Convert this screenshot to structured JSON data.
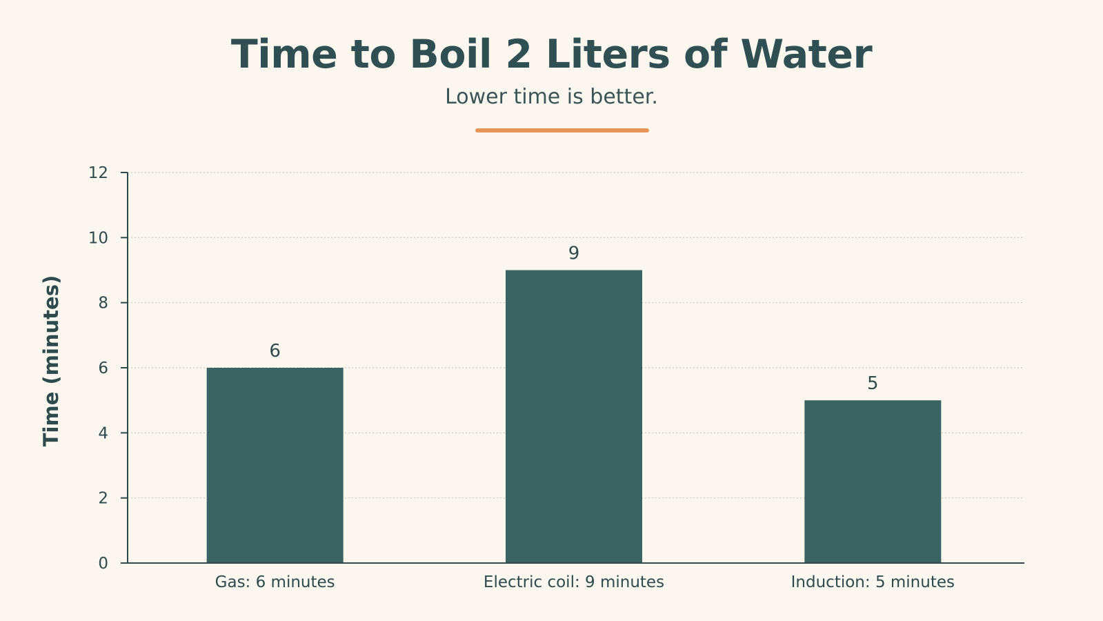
{
  "chart_data": {
    "type": "bar",
    "title": "Time to Boil 2 Liters of Water",
    "subtitle": "Lower time is better.",
    "categories": [
      "Gas: 6 minutes",
      "Electric coil: 9 minutes",
      "Induction: 5 minutes"
    ],
    "values": [
      6,
      9,
      5
    ],
    "data_labels": [
      "6",
      "9",
      "5"
    ],
    "xlabel": "",
    "ylabel": "Time (minutes)",
    "ylim": [
      0,
      12
    ],
    "yticks": [
      0,
      2,
      4,
      6,
      8,
      10,
      12
    ],
    "grid": true,
    "legend": "none"
  },
  "colors": {
    "bar": "#3a6464",
    "accent": "#e8955a",
    "axis": "#2d4a4c",
    "grid": "#c9c9bf",
    "background": "#fbf7ee"
  }
}
